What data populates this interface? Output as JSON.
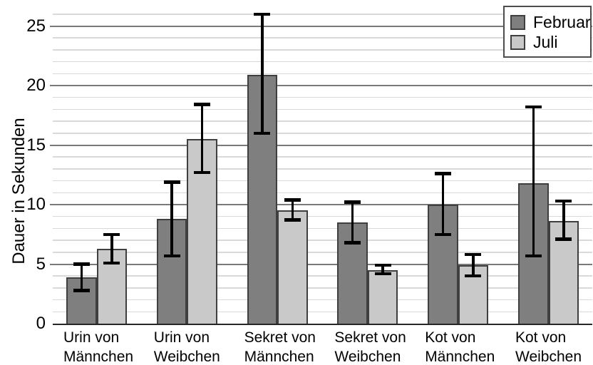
{
  "chart_data": {
    "type": "bar",
    "title": "",
    "xlabel": "",
    "ylabel": "Dauer in Sekunden",
    "ylim": [
      0,
      26
    ],
    "yticks": [
      0,
      5,
      10,
      15,
      20,
      25
    ],
    "minor_grid_interval": 1,
    "grid": "horizontal, minor every 1 unit, major every 5 units",
    "legend_position": "top-right",
    "error_bars": true,
    "categories": [
      [
        "Urin von",
        "Männchen"
      ],
      [
        "Urin von",
        "Weibchen"
      ],
      [
        "Sekret von",
        "Männchen"
      ],
      [
        "Sekret von",
        "Weibchen"
      ],
      [
        "Kot von",
        "Männchen"
      ],
      [
        "Kot von",
        "Weibchen"
      ]
    ],
    "series": [
      {
        "name": "Februar",
        "color": "#7f7f7f",
        "values": [
          3.9,
          8.8,
          20.9,
          8.5,
          10.0,
          11.8
        ],
        "err_low": [
          2.8,
          5.7,
          16.0,
          6.8,
          7.5,
          5.7
        ],
        "err_high": [
          5.0,
          11.9,
          26.0,
          10.2,
          12.6,
          18.2
        ]
      },
      {
        "name": "Juli",
        "color": "#c9c9c9",
        "values": [
          6.3,
          15.5,
          9.5,
          4.5,
          4.9,
          8.6
        ],
        "err_low": [
          5.1,
          12.7,
          8.7,
          4.2,
          4.0,
          7.1
        ],
        "err_high": [
          7.5,
          18.4,
          10.4,
          4.9,
          5.8,
          10.3
        ]
      }
    ]
  },
  "colors": {
    "februar_fill": "#7f7f7f",
    "juli_fill": "#c9c9c9",
    "bar_border": "#3f3f3f",
    "major_gridline": "#7a7a7a",
    "minor_gridline": "#d9d9d9",
    "axis_line": "#262626",
    "error_bar": "#000000",
    "legend_border": "#4d4d4d",
    "background": "#ffffff",
    "text": "#000000"
  }
}
